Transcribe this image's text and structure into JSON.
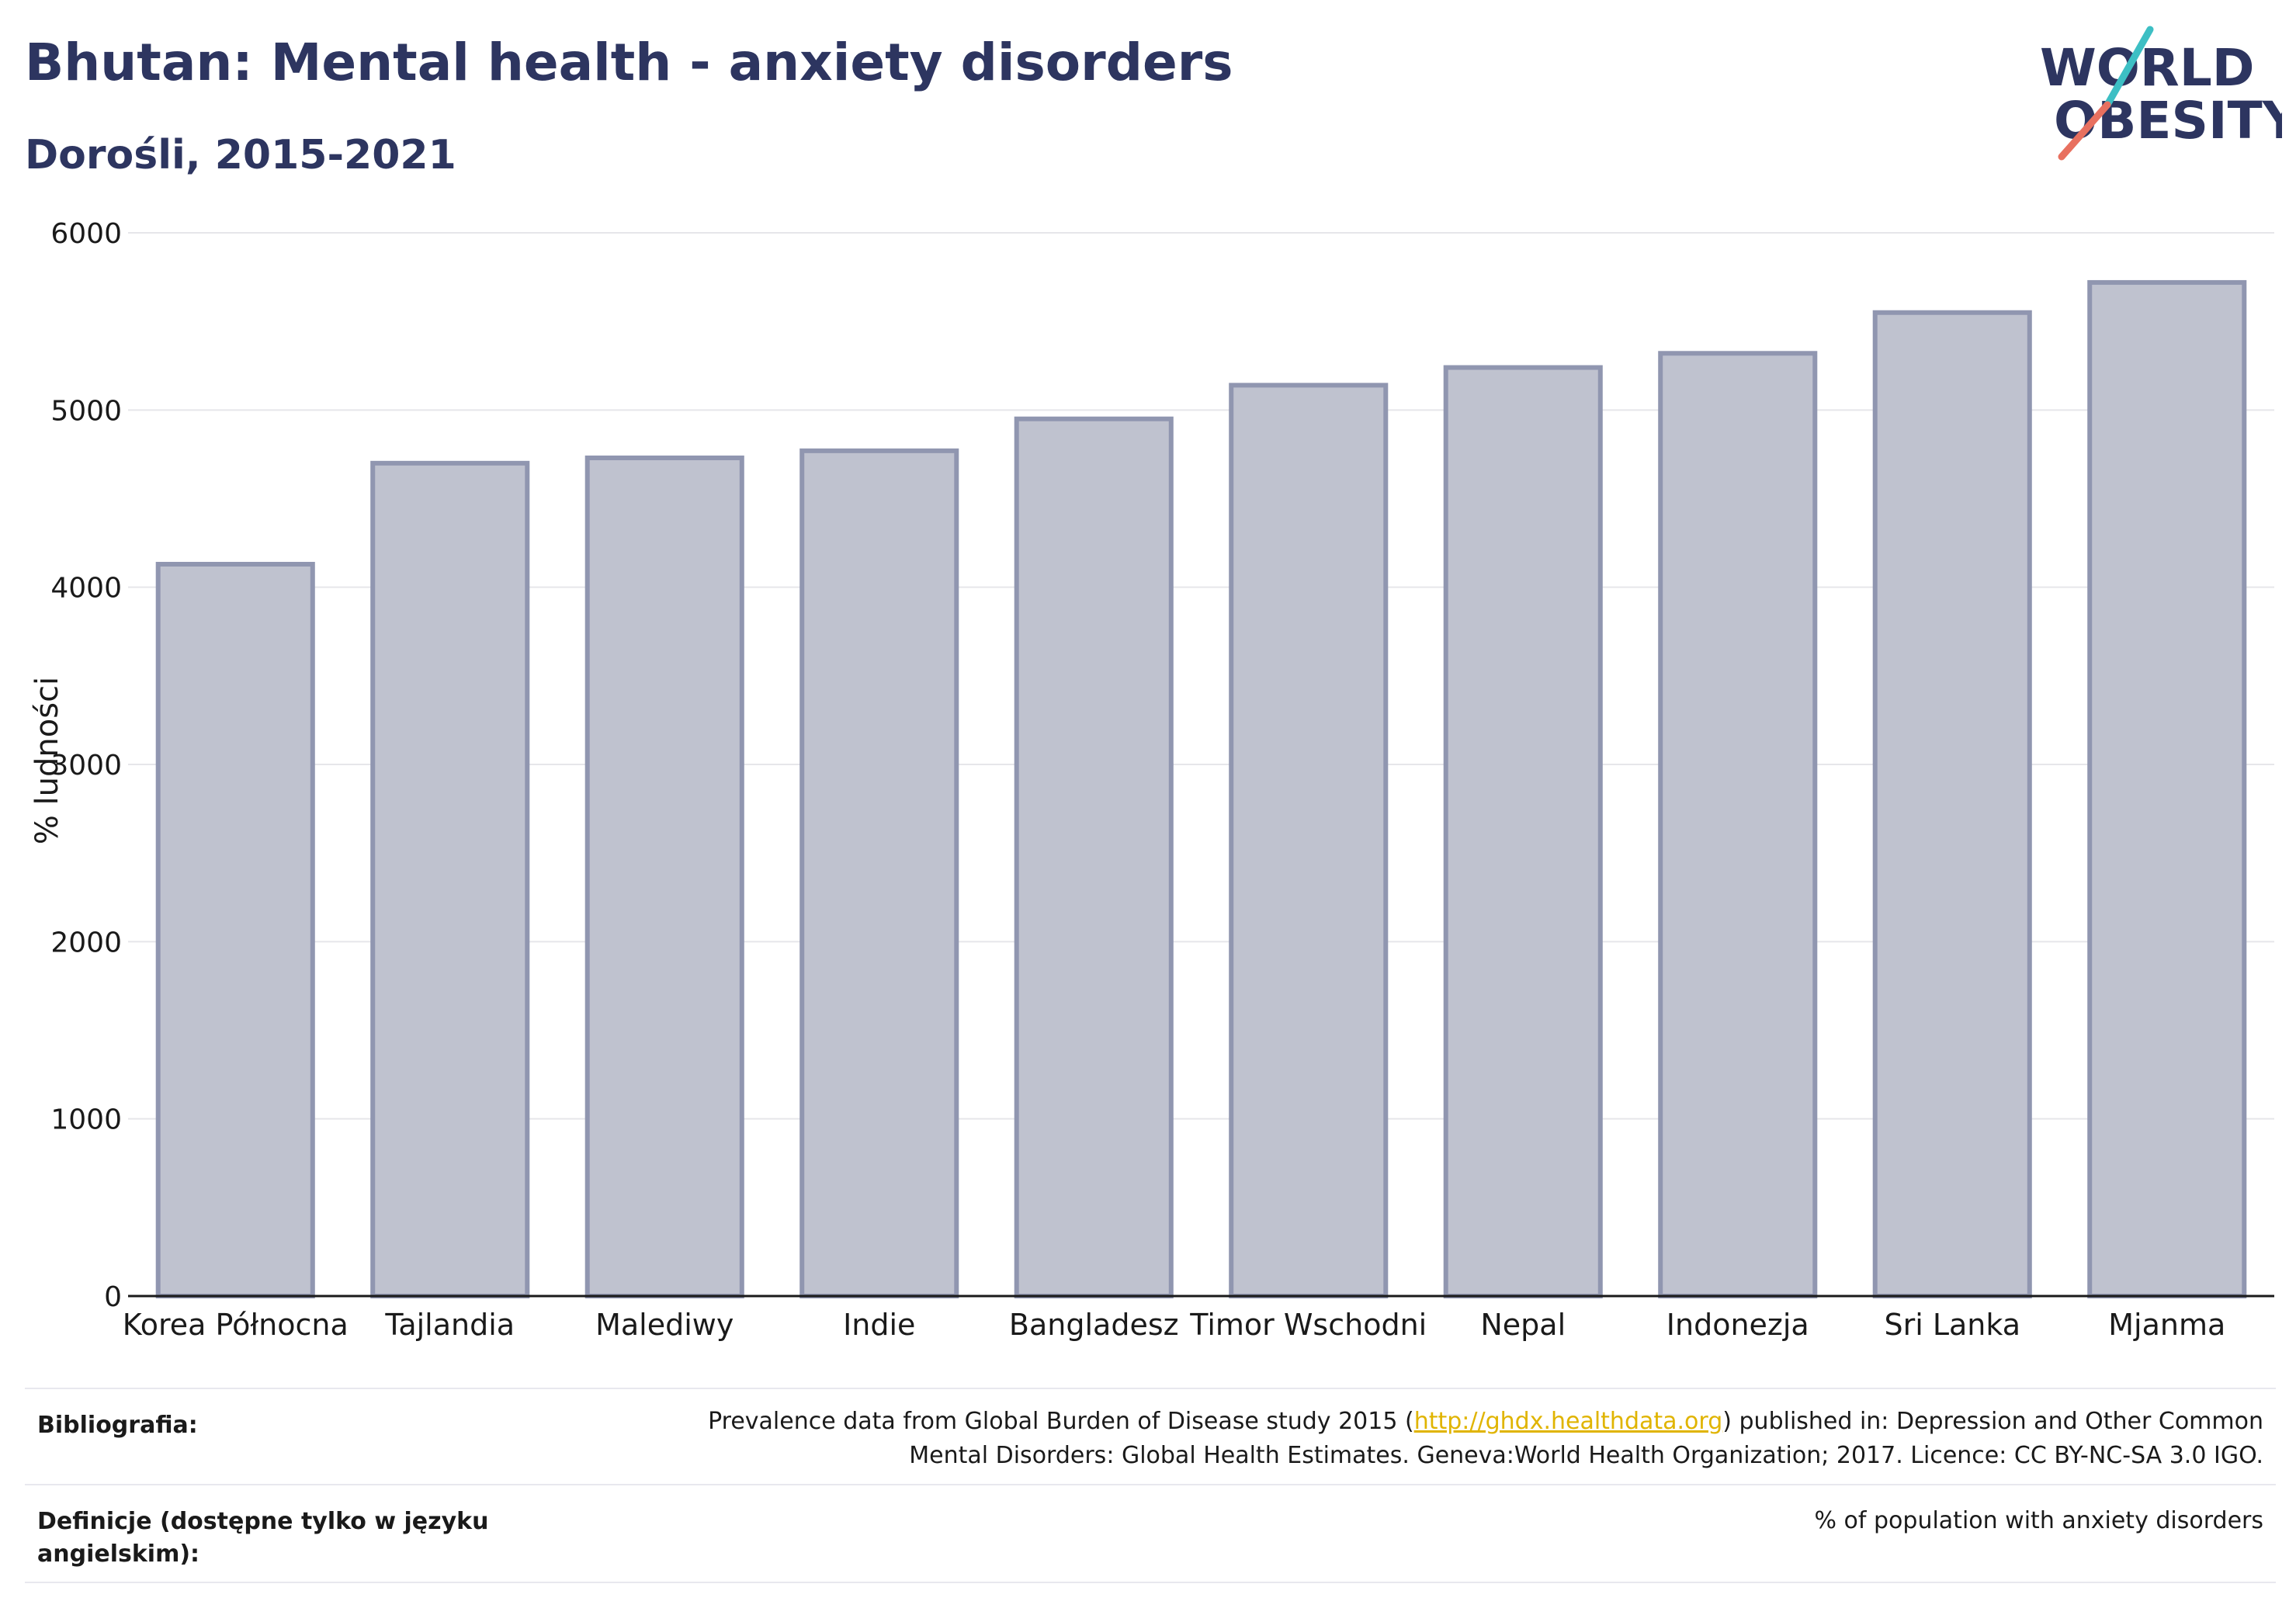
{
  "header": {
    "title": "Bhutan: Mental health - anxiety disorders",
    "subtitle": "Dorośli, 2015-2021"
  },
  "logo": {
    "line1": "WORLD",
    "line2": "OBESITY",
    "text_color": "#2d3560",
    "accent_teal": "#3dbfc4",
    "accent_coral": "#e8705f"
  },
  "chart_data": {
    "type": "bar",
    "categories": [
      "Korea Północna",
      "Tajlandia",
      "Malediwy",
      "Indie",
      "Bangladesz",
      "Timor Wschodni",
      "Nepal",
      "Indonezja",
      "Sri Lanka",
      "Mjanma"
    ],
    "values": [
      4130,
      4700,
      4730,
      4770,
      4950,
      5140,
      5240,
      5320,
      5550,
      5720
    ],
    "title": "",
    "xlabel": "",
    "ylabel": "% ludności",
    "ylim": [
      0,
      6000
    ],
    "yticks": [
      0,
      1000,
      2000,
      3000,
      4000,
      5000,
      6000
    ],
    "grid": true,
    "bar_fill": "#bfc2cf",
    "bar_stroke": "#9096b0"
  },
  "footer": {
    "bibliography_label": "Bibliografia:",
    "bibliography_text_before": "Prevalence data from Global Burden of Disease study 2015 (",
    "bibliography_link": "http://ghdx.healthdata.org",
    "bibliography_text_after": ") published in: Depression and Other Common Mental Disorders: Global Health Estimates. Geneva:World Health Organization; 2017. Licence: CC BY-NC-SA 3.0 IGO.",
    "definitions_label": "Definicje (dostępne tylko w języku angielskim):",
    "definitions_text": "% of population with anxiety disorders"
  }
}
